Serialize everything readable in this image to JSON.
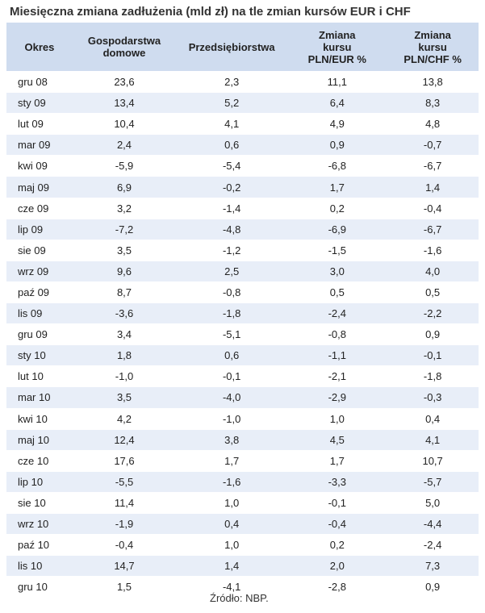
{
  "title": "Miesięczna zmiana zadłużenia (mld zł) na tle zmian kursów EUR i CHF",
  "source": "Źródło: NBP.",
  "chart_data": {
    "type": "table",
    "title": "Miesięczna zmiana zadłużenia (mld zł) na tle zmian kursów EUR i CHF",
    "columns": [
      [
        "Okres"
      ],
      [
        "Gospodarstwa",
        "domowe"
      ],
      [
        "Przedsiębiorstwa"
      ],
      [
        "Zmiana",
        "kursu",
        "PLN/EUR %"
      ],
      [
        "Zmiana",
        "kursu",
        "PLN/CHF %"
      ]
    ],
    "rows": [
      [
        "gru 08",
        "23,6",
        "2,3",
        "11,1",
        "13,8"
      ],
      [
        "sty 09",
        "13,4",
        "5,2",
        "6,4",
        "8,3"
      ],
      [
        "lut 09",
        "10,4",
        "4,1",
        "4,9",
        "4,8"
      ],
      [
        "mar 09",
        "2,4",
        "0,6",
        "0,9",
        "-0,7"
      ],
      [
        "kwi 09",
        "-5,9",
        "-5,4",
        "-6,8",
        "-6,7"
      ],
      [
        "maj 09",
        "6,9",
        "-0,2",
        "1,7",
        "1,4"
      ],
      [
        "cze 09",
        "3,2",
        "-1,4",
        "0,2",
        "-0,4"
      ],
      [
        "lip 09",
        "-7,2",
        "-4,8",
        "-6,9",
        "-6,7"
      ],
      [
        "sie 09",
        "3,5",
        "-1,2",
        "-1,5",
        "-1,6"
      ],
      [
        "wrz 09",
        "9,6",
        "2,5",
        "3,0",
        "4,0"
      ],
      [
        "paź 09",
        "8,7",
        "-0,8",
        "0,5",
        "0,5"
      ],
      [
        "lis 09",
        "-3,6",
        "-1,8",
        "-2,4",
        "-2,2"
      ],
      [
        "gru 09",
        "3,4",
        "-5,1",
        "-0,8",
        "0,9"
      ],
      [
        "sty 10",
        "1,8",
        "0,6",
        "-1,1",
        "-0,1"
      ],
      [
        "lut 10",
        "-1,0",
        "-0,1",
        "-2,1",
        "-1,8"
      ],
      [
        "mar 10",
        "3,5",
        "-4,0",
        "-2,9",
        "-0,3"
      ],
      [
        "kwi 10",
        "4,2",
        "-1,0",
        "1,0",
        "0,4"
      ],
      [
        "maj 10",
        "12,4",
        "3,8",
        "4,5",
        "4,1"
      ],
      [
        "cze 10",
        "17,6",
        "1,7",
        "1,7",
        "10,7"
      ],
      [
        "lip 10",
        "-5,5",
        "-1,6",
        "-3,3",
        "-5,7"
      ],
      [
        "sie 10",
        "11,4",
        "1,0",
        "-0,1",
        "5,0"
      ],
      [
        "wrz 10",
        "-1,9",
        "0,4",
        "-0,4",
        "-4,4"
      ],
      [
        "paź 10",
        "-0,4",
        "1,0",
        "0,2",
        "-2,4"
      ],
      [
        "lis 10",
        "14,7",
        "1,4",
        "2,0",
        "7,3"
      ],
      [
        "gru 10",
        "1,5",
        "-4,1",
        "-2,8",
        "0,9"
      ]
    ]
  }
}
